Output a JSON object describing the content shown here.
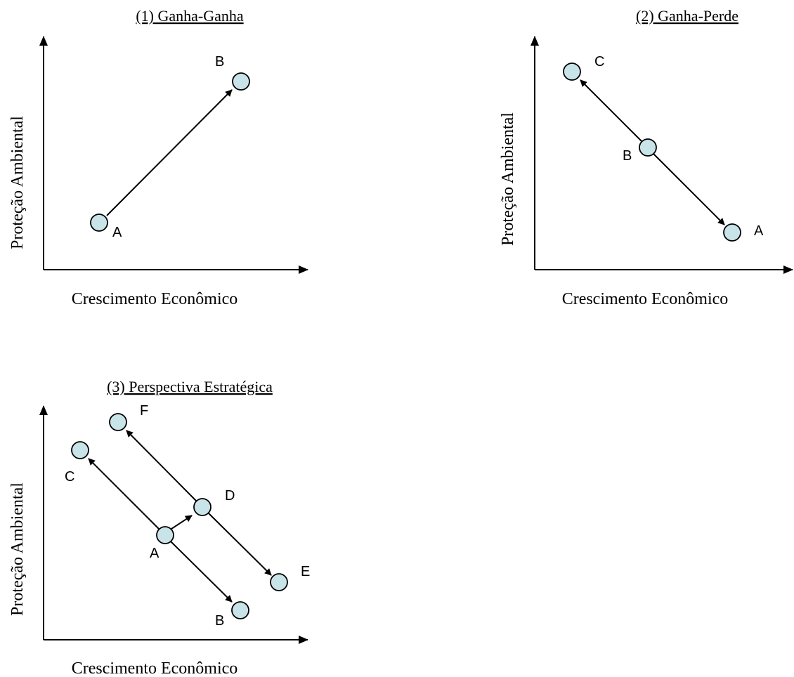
{
  "panels": [
    {
      "id": "ganha-ganha",
      "title": "(1) Ganha-Ganha",
      "x_axis_label": "Crescimento Econômico",
      "y_axis_label": "Proteção Ambiental",
      "points": [
        "A",
        "B"
      ],
      "arrows": [
        {
          "from": "A",
          "to": "B"
        }
      ]
    },
    {
      "id": "ganha-perde",
      "title": "(2) Ganha-Perde",
      "x_axis_label": "Crescimento Econômico",
      "y_axis_label": "Proteção Ambiental",
      "points": [
        "C",
        "B",
        "A"
      ],
      "arrows": [
        {
          "from": "B",
          "to": "C"
        },
        {
          "from": "B",
          "to": "A"
        }
      ]
    },
    {
      "id": "perspectiva-estrategica",
      "title": "(3) Perspectiva Estratégica",
      "x_axis_label": "Crescimento Econômico",
      "y_axis_label": "Proteção Ambiental",
      "points": [
        "F",
        "C",
        "D",
        "A",
        "E",
        "B"
      ],
      "arrows": [
        {
          "from": "A",
          "to": "C"
        },
        {
          "from": "A",
          "to": "B"
        },
        {
          "from": "A",
          "to": "D"
        },
        {
          "from": "D",
          "to": "F"
        },
        {
          "from": "D",
          "to": "E"
        }
      ]
    }
  ],
  "colors": {
    "node_fill": "#c9e4e8",
    "stroke": "#000000"
  }
}
